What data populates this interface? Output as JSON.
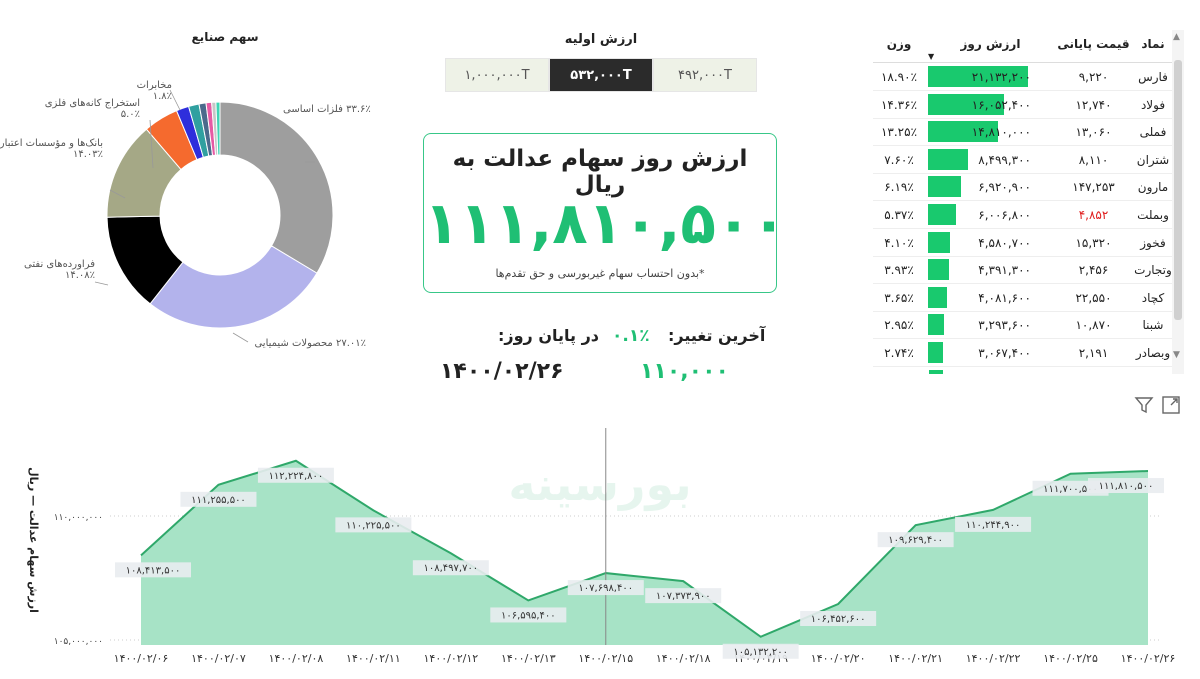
{
  "donut": {
    "title": "سهم صنایع",
    "labels": [
      {
        "name": "فلزات اساسی",
        "pct": "۳۳.۶٪"
      },
      {
        "name": "محصولات شیمیایی",
        "pct": "۲۷.۰۱٪"
      },
      {
        "name": "فراورده‌های نفتی",
        "pct": "۱۴.۰۸٪"
      },
      {
        "name": "بانک‌ها و مؤسسات اعتباری",
        "pct": "۱۴.۰۳٪"
      },
      {
        "name": "استخراج کانه‌های فلزی",
        "pct": "۵.۰٪"
      },
      {
        "name": "مخابرات",
        "pct": "۱.۸٪"
      }
    ],
    "slices": [
      {
        "value": 33.6,
        "color": "#9e9e9e"
      },
      {
        "value": 27.01,
        "color": "#b3b3ec"
      },
      {
        "value": 14.08,
        "color": "#000000"
      },
      {
        "value": 14.03,
        "color": "#a5a886"
      },
      {
        "value": 5.0,
        "color": "#f56a2e"
      },
      {
        "value": 1.8,
        "color": "#2e2edc"
      },
      {
        "value": 1.5,
        "color": "#30a0a0"
      },
      {
        "value": 1.0,
        "color": "#4b6a8c"
      },
      {
        "value": 0.8,
        "color": "#e65aa4"
      },
      {
        "value": 0.6,
        "color": "#c7c7c7"
      },
      {
        "value": 0.58,
        "color": "#3fd4b4"
      }
    ]
  },
  "initial_value": {
    "title": "ارزش اولیه",
    "options": [
      "۱,۰۰۰,۰۰۰T",
      "۵۳۲,۰۰۰T",
      "۴۹۲,۰۰۰T"
    ],
    "selected_index": 1
  },
  "card": {
    "title": "ارزش روز سهام عدالت به ریال",
    "value": "۱۱۱,۸۱۰,۵۰۰",
    "note": "*بدون احتساب سهام غیربورسی و حق تقدم‌ها"
  },
  "last_change": {
    "label": "آخرین تغییر:",
    "value": "۰.۱٪"
  },
  "end_of_day": {
    "label": "در پایان روز:",
    "date": "۱۴۰۰/۰۲/۲۶",
    "value": "۱۱۰,۰۰۰"
  },
  "table": {
    "headers": {
      "symbol": "نماد",
      "close": "قیمت پایانی",
      "value": "ارزش روز",
      "weight": "وزن"
    },
    "rows": [
      {
        "symbol": "فارس",
        "close": "۹,۲۲۰",
        "value": "۲۱,۱۳۲,۲۰۰",
        "weight": "۱۸.۹۰٪",
        "bar": 1.0,
        "close_color": "#222"
      },
      {
        "symbol": "فولاد",
        "close": "۱۲,۷۴۰",
        "value": "۱۶,۰۵۲,۴۰۰",
        "weight": "۱۴.۳۶٪",
        "bar": 0.76,
        "close_color": "#222"
      },
      {
        "symbol": "فملی",
        "close": "۱۳,۰۶۰",
        "value": "۱۴,۸۱۰,۰۰۰",
        "weight": "۱۳.۲۵٪",
        "bar": 0.7,
        "close_color": "#222"
      },
      {
        "symbol": "شتران",
        "close": "۸,۱۱۰",
        "value": "۸,۴۹۹,۳۰۰",
        "weight": "۷.۶۰٪",
        "bar": 0.4,
        "close_color": "#222"
      },
      {
        "symbol": "مارون",
        "close": "۱۴۷,۲۵۳",
        "value": "۶,۹۲۰,۹۰۰",
        "weight": "۶.۱۹٪",
        "bar": 0.33,
        "close_color": "#222"
      },
      {
        "symbol": "وبملت",
        "close": "۴,۸۵۲",
        "value": "۶,۰۰۶,۸۰۰",
        "weight": "۵.۳۷٪",
        "bar": 0.28,
        "close_color": "#e02020"
      },
      {
        "symbol": "فخوز",
        "close": "۱۵,۳۲۰",
        "value": "۴,۵۸۰,۷۰۰",
        "weight": "۴.۱۰٪",
        "bar": 0.22,
        "close_color": "#222"
      },
      {
        "symbol": "وتجارت",
        "close": "۲,۴۵۶",
        "value": "۴,۳۹۱,۳۰۰",
        "weight": "۳.۹۳٪",
        "bar": 0.21,
        "close_color": "#222"
      },
      {
        "symbol": "کچاد",
        "close": "۲۲,۵۵۰",
        "value": "۴,۰۸۱,۶۰۰",
        "weight": "۳.۶۵٪",
        "bar": 0.19,
        "close_color": "#222"
      },
      {
        "symbol": "شبنا",
        "close": "۱۰,۸۷۰",
        "value": "۳,۲۹۳,۶۰۰",
        "weight": "۲.۹۵٪",
        "bar": 0.16,
        "close_color": "#222"
      },
      {
        "symbol": "وبصادر",
        "close": "۲,۱۹۱",
        "value": "۳,۰۶۷,۴۰۰",
        "weight": "۲.۷۴٪",
        "bar": 0.15,
        "close_color": "#222"
      }
    ]
  },
  "icons": {
    "filter": "filter-icon",
    "focus": "focus-mode-icon",
    "sort": "sort-descending-icon"
  },
  "watermark": "بورسینه",
  "chart_data": {
    "type": "area",
    "ylabel": "ارزش سهام عدالت — ریال",
    "ylim": [
      104800000,
      112900000
    ],
    "yticks": [
      {
        "value": 105000000,
        "label": "۱۰۵,۰۰۰,۰۰۰"
      },
      {
        "value": 110000000,
        "label": "۱۱۰,۰۰۰,۰۰۰"
      }
    ],
    "x": [
      "۱۴۰۰/۰۲/۰۶",
      "۱۴۰۰/۰۲/۰۷",
      "۱۴۰۰/۰۲/۰۸",
      "۱۴۰۰/۰۲/۱۱",
      "۱۴۰۰/۰۲/۱۲",
      "۱۴۰۰/۰۲/۱۳",
      "۱۴۰۰/۰۲/۱۵",
      "۱۴۰۰/۰۲/۱۸",
      "۱۴۰۰/۰۲/۱۹",
      "۱۴۰۰/۰۲/۲۰",
      "۱۴۰۰/۰۲/۲۱",
      "۱۴۰۰/۰۲/۲۲",
      "۱۴۰۰/۰۲/۲۵",
      "۱۴۰۰/۰۲/۲۶"
    ],
    "values": [
      108413500,
      111255500,
      112224800,
      110225500,
      108497700,
      106595400,
      107698400,
      107373900,
      105132200,
      106452600,
      109629400,
      110244900,
      111700500,
      111810500
    ],
    "labels": [
      "۱۰۸,۴۱۳,۵۰۰",
      "۱۱۱,۲۵۵,۵۰۰",
      "۱۱۲,۲۲۴,۸۰۰",
      "۱۱۰,۲۲۵,۵۰۰",
      "۱۰۸,۴۹۷,۷۰۰",
      "۱۰۶,۵۹۵,۴۰۰",
      "۱۰۷,۶۹۸,۴۰۰",
      "۱۰۷,۳۷۳,۹۰۰",
      "۱۰۵,۱۳۲,۲۰۰",
      "۱۰۶,۴۵۲,۶۰۰",
      "۱۰۹,۶۲۹,۴۰۰",
      "۱۱۰,۲۴۴,۹۰۰",
      "۱۱۱,۷۰۰,۵۰۰",
      "۱۱۱,۸۱۰,۵۰۰"
    ],
    "cursor_index": 6,
    "fill_color": "#a7e3c6",
    "line_color": "#2fa86a"
  }
}
